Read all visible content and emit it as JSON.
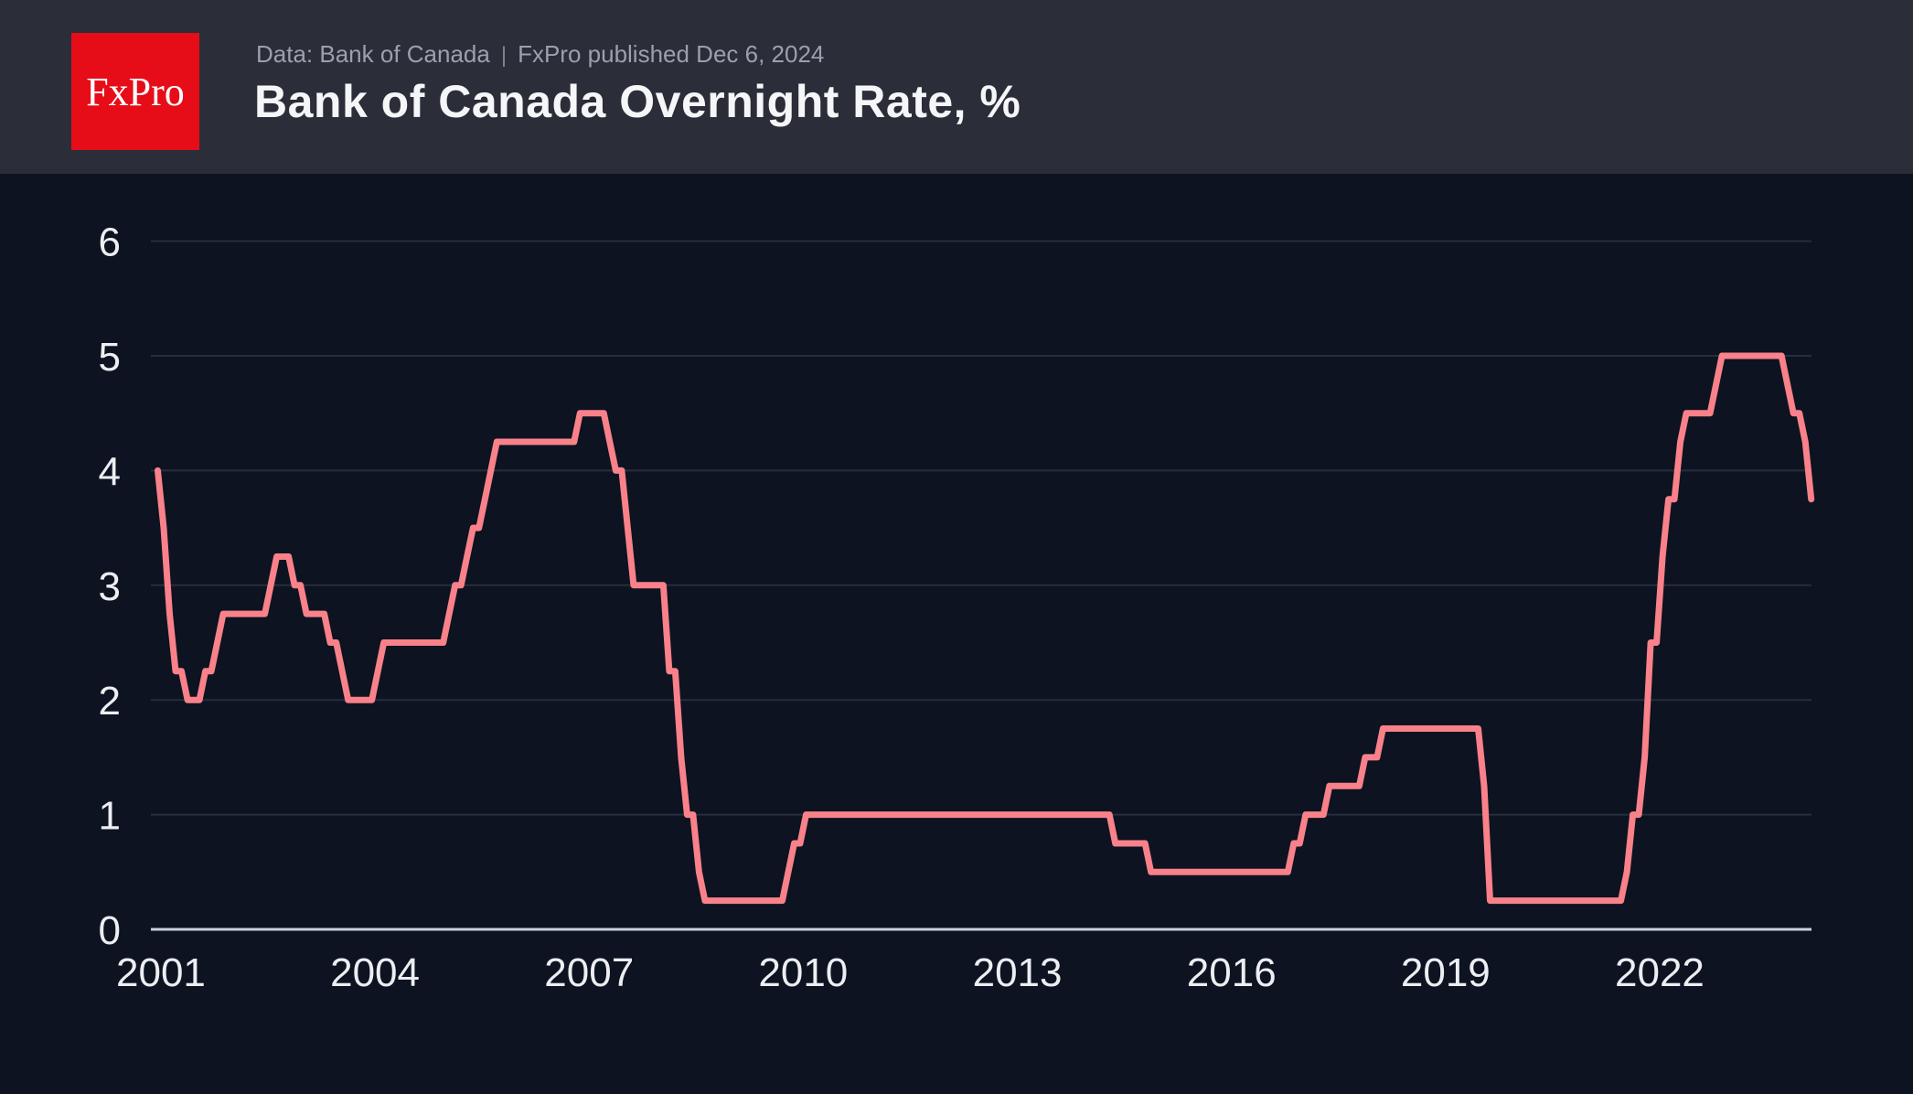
{
  "header": {
    "logo_text": "FxPro",
    "source": "Data: Bank of Canada",
    "separator": "|",
    "published": "FxPro published Dec 6, 2024",
    "title": "Bank of Canada Overnight Rate, %"
  },
  "colors": {
    "header_bg": "#2b2d39",
    "chart_bg": "#0d1320",
    "logo_red": "#e60d18",
    "line": "#f8818a",
    "grid": "#262d3c",
    "axis": "#cbd1da",
    "tick_labels": "#eceef2",
    "title": "#f4f6f8",
    "subtitle": "#9aa1ad"
  },
  "chart_data": {
    "type": "line",
    "title": "Bank of Canada Overnight Rate, %",
    "xlabel": "",
    "ylabel": "",
    "series_name": "Bank of Canada overnight target rate, %",
    "x_ticks": [
      2001,
      2004,
      2007,
      2010,
      2013,
      2016,
      2019,
      2022
    ],
    "y_ticks": [
      0,
      1,
      2,
      3,
      4,
      5,
      6
    ],
    "ylim": [
      0,
      6.5
    ],
    "xlim_years": [
      2001.5,
      2024.83
    ],
    "grid": "horizontal-only",
    "legend": "none",
    "sampling": "monthly",
    "range": {
      "start": "2001-08",
      "end": "2024-10"
    },
    "start_value": 4.0,
    "end_value": 3.75,
    "rate_changes": [
      [
        "2001-08",
        4.0
      ],
      [
        "2001-09",
        3.5
      ],
      [
        "2001-10",
        2.75
      ],
      [
        "2001-11",
        2.25
      ],
      [
        "2002-01",
        2.0
      ],
      [
        "2002-04",
        2.25
      ],
      [
        "2002-06",
        2.5
      ],
      [
        "2002-07",
        2.75
      ],
      [
        "2003-03",
        3.0
      ],
      [
        "2003-04",
        3.25
      ],
      [
        "2003-07",
        3.0
      ],
      [
        "2003-09",
        2.75
      ],
      [
        "2004-01",
        2.5
      ],
      [
        "2004-03",
        2.25
      ],
      [
        "2004-04",
        2.0
      ],
      [
        "2004-09",
        2.25
      ],
      [
        "2004-10",
        2.5
      ],
      [
        "2005-09",
        2.75
      ],
      [
        "2005-10",
        3.0
      ],
      [
        "2005-12",
        3.25
      ],
      [
        "2006-01",
        3.5
      ],
      [
        "2006-03",
        3.75
      ],
      [
        "2006-04",
        4.0
      ],
      [
        "2006-05",
        4.25
      ],
      [
        "2007-07",
        4.5
      ],
      [
        "2007-12",
        4.25
      ],
      [
        "2008-01",
        4.0
      ],
      [
        "2008-03",
        3.5
      ],
      [
        "2008-04",
        3.0
      ],
      [
        "2008-10",
        2.25
      ],
      [
        "2008-12",
        1.5
      ],
      [
        "2009-01",
        1.0
      ],
      [
        "2009-03",
        0.5
      ],
      [
        "2009-04",
        0.25
      ],
      [
        "2010-06",
        0.5
      ],
      [
        "2010-07",
        0.75
      ],
      [
        "2010-09",
        1.0
      ],
      [
        "2015-01",
        0.75
      ],
      [
        "2015-07",
        0.5
      ],
      [
        "2017-07",
        0.75
      ],
      [
        "2017-09",
        1.0
      ],
      [
        "2018-01",
        1.25
      ],
      [
        "2018-07",
        1.5
      ],
      [
        "2018-10",
        1.75
      ],
      [
        "2020-03",
        1.25
      ],
      [
        "2020-04",
        0.25
      ],
      [
        "2022-03",
        0.5
      ],
      [
        "2022-04",
        1.0
      ],
      [
        "2022-06",
        1.5
      ],
      [
        "2022-07",
        2.5
      ],
      [
        "2022-09",
        3.25
      ],
      [
        "2022-10",
        3.75
      ],
      [
        "2022-12",
        4.25
      ],
      [
        "2023-01",
        4.5
      ],
      [
        "2023-06",
        4.75
      ],
      [
        "2023-07",
        5.0
      ],
      [
        "2024-06",
        4.75
      ],
      [
        "2024-07",
        4.5
      ],
      [
        "2024-09",
        4.25
      ],
      [
        "2024-10",
        3.75
      ]
    ]
  }
}
